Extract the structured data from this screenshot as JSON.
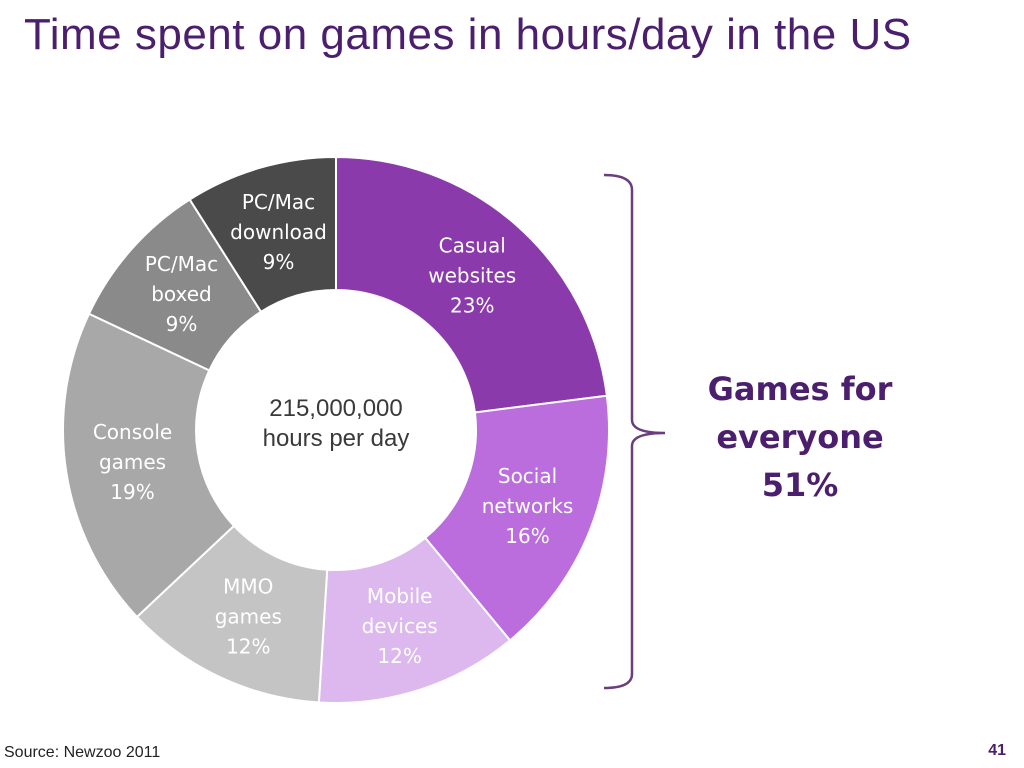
{
  "title": "Time spent on games in hours/day in the US",
  "chart_data": {
    "type": "pie",
    "style": "donut",
    "center_text": [
      "215,000,000",
      "hours per day"
    ],
    "series": [
      {
        "category": [
          "Casual",
          "websites"
        ],
        "percent_label": "23%",
        "value": 23,
        "color": "#8b3aab",
        "label_color": "#ffffff"
      },
      {
        "category": [
          "Social",
          "networks"
        ],
        "percent_label": "16%",
        "value": 16,
        "color": "#bb6cdd",
        "label_color": "#ffffff"
      },
      {
        "category": [
          "Mobile",
          "devices"
        ],
        "percent_label": "12%",
        "value": 12,
        "color": "#dcb8ee",
        "label_color": "#ffffff"
      },
      {
        "category": [
          "MMO",
          "games"
        ],
        "percent_label": "12%",
        "value": 12,
        "color": "#c4c4c4",
        "label_color": "#ffffff"
      },
      {
        "category": [
          "Console",
          "games"
        ],
        "percent_label": "19%",
        "value": 19,
        "color": "#a8a8a8",
        "label_color": "#ffffff"
      },
      {
        "category": [
          "PC/Mac",
          "boxed"
        ],
        "percent_label": "9%",
        "value": 9,
        "color": "#8a8a8a",
        "label_color": "#ffffff"
      },
      {
        "category": [
          "PC/Mac",
          "download"
        ],
        "percent_label": "9%",
        "value": 9,
        "color": "#4a4a4a",
        "label_color": "#ffffff"
      }
    ]
  },
  "bracket_color": "#6a3d7e",
  "callout": {
    "line1": "Games for",
    "line2": "everyone",
    "line3": "51%"
  },
  "source": "Source: Newzoo 2011",
  "page_number": "41"
}
